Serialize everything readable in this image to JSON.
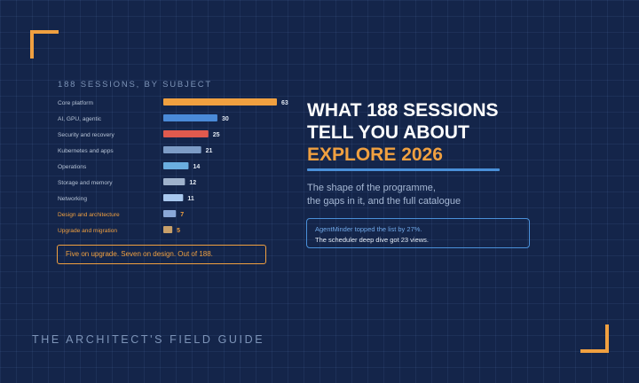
{
  "chart_data": {
    "type": "bar",
    "orientation": "horizontal",
    "title": "188 SESSIONS, BY SUBJECT",
    "categories": [
      "Core platform",
      "AI, GPU, agentic",
      "Security and recovery",
      "Kubernetes and apps",
      "Operations",
      "Storage and memory",
      "Networking",
      "Design and architecture",
      "Upgrade and migration"
    ],
    "values": [
      63,
      30,
      25,
      21,
      14,
      12,
      11,
      7,
      5
    ],
    "colors": [
      "#f0a040",
      "#4a8ad8",
      "#e05a4e",
      "#7d9cc6",
      "#6aaee0",
      "#9fb2cc",
      "#a8c8ee",
      "#8aa8d8",
      "#c8a06a"
    ],
    "label_colors": [
      "#b6c3d6",
      "#b6c3d6",
      "#b6c3d6",
      "#b6c3d6",
      "#b6c3d6",
      "#b6c3d6",
      "#b6c3d6",
      "#f0a040",
      "#f0a040"
    ],
    "xlim": [
      0,
      63
    ]
  },
  "callout_left": "Five on upgrade. Seven on design. Out of 188.",
  "headline": {
    "line1": "WHAT 188 SESSIONS",
    "line2": "TELL YOU ABOUT",
    "line3": "EXPLORE 2026"
  },
  "subtitle": {
    "line1": "The shape of the programme,",
    "line2": "the gaps in it, and the full catalogue"
  },
  "callout_right": {
    "line1": "AgentMinder topped the list by 27%.",
    "line2": "The scheduler deep dive got 23 views."
  },
  "footer": "THE ARCHITECT'S FIELD GUIDE",
  "colors": {
    "accent": "#f0a040",
    "blue": "#4a90d9",
    "background": "#14254a"
  }
}
